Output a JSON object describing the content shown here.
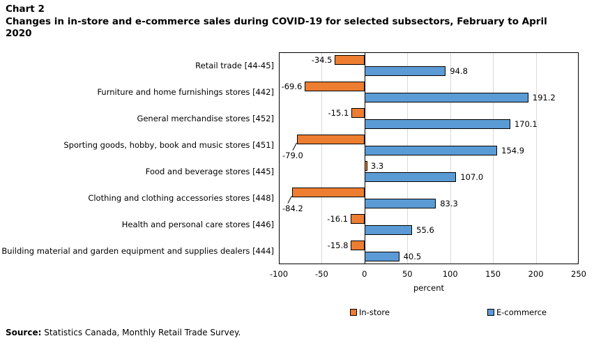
{
  "header": {
    "chart_label": "Chart 2",
    "title": "Changes in in-store and e-commerce sales during COVID-19 for selected subsectors, February to April 2020"
  },
  "chart_data": {
    "type": "bar",
    "orientation": "horizontal",
    "title": "Changes in in-store and e-commerce sales during COVID-19 for selected subsectors, February to April 2020",
    "categories": [
      "Retail trade [44-45]",
      "Furniture and home furnishings stores [442]",
      "General merchandise stores [452]",
      "Sporting goods, hobby, book and music stores [451]",
      "Food and beverage stores [445]",
      "Clothing and clothing accessories stores [448]",
      "Health and personal care stores [446]",
      "Building material and garden equipment and supplies dealers [444]"
    ],
    "series": [
      {
        "name": "In-store",
        "color": "#ED7D31",
        "values": [
          -34.5,
          -69.6,
          -15.1,
          -79.0,
          3.3,
          -84.2,
          -16.1,
          -15.8
        ]
      },
      {
        "name": "E-commerce",
        "color": "#5B9BD5",
        "values": [
          94.8,
          191.2,
          170.1,
          154.9,
          107.0,
          83.3,
          55.6,
          40.5
        ]
      }
    ],
    "xlabel": "percent",
    "xlim": [
      -100,
      250
    ],
    "xticks": [
      -100,
      -50,
      0,
      50,
      100,
      150,
      200,
      250
    ],
    "grid": true,
    "legend_position": "bottom",
    "gridline_color": "#D9D9D9",
    "axis_color": "#000000",
    "bar_border_color": "#000000"
  },
  "legend": {
    "items": [
      {
        "label": "In-store",
        "color": "#ED7D31"
      },
      {
        "label": "E-commerce",
        "color": "#5B9BD5"
      }
    ]
  },
  "source": {
    "label": "Source:",
    "text": " Statistics Canada, Monthly Retail Trade Survey."
  }
}
